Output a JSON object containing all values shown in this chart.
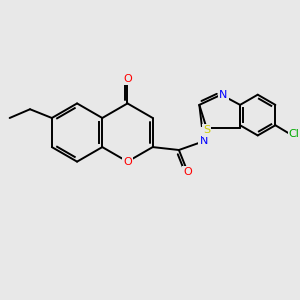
{
  "background_color": "#e8e8e8",
  "figsize": [
    3.0,
    3.0
  ],
  "dpi": 100,
  "bond_color": "#000000",
  "bond_lw": 1.4,
  "atom_colors": {
    "O": "#ff0000",
    "N": "#0000ff",
    "S": "#cccc00",
    "Cl": "#00aa00",
    "C": "#000000"
  },
  "font_size": 7.5
}
